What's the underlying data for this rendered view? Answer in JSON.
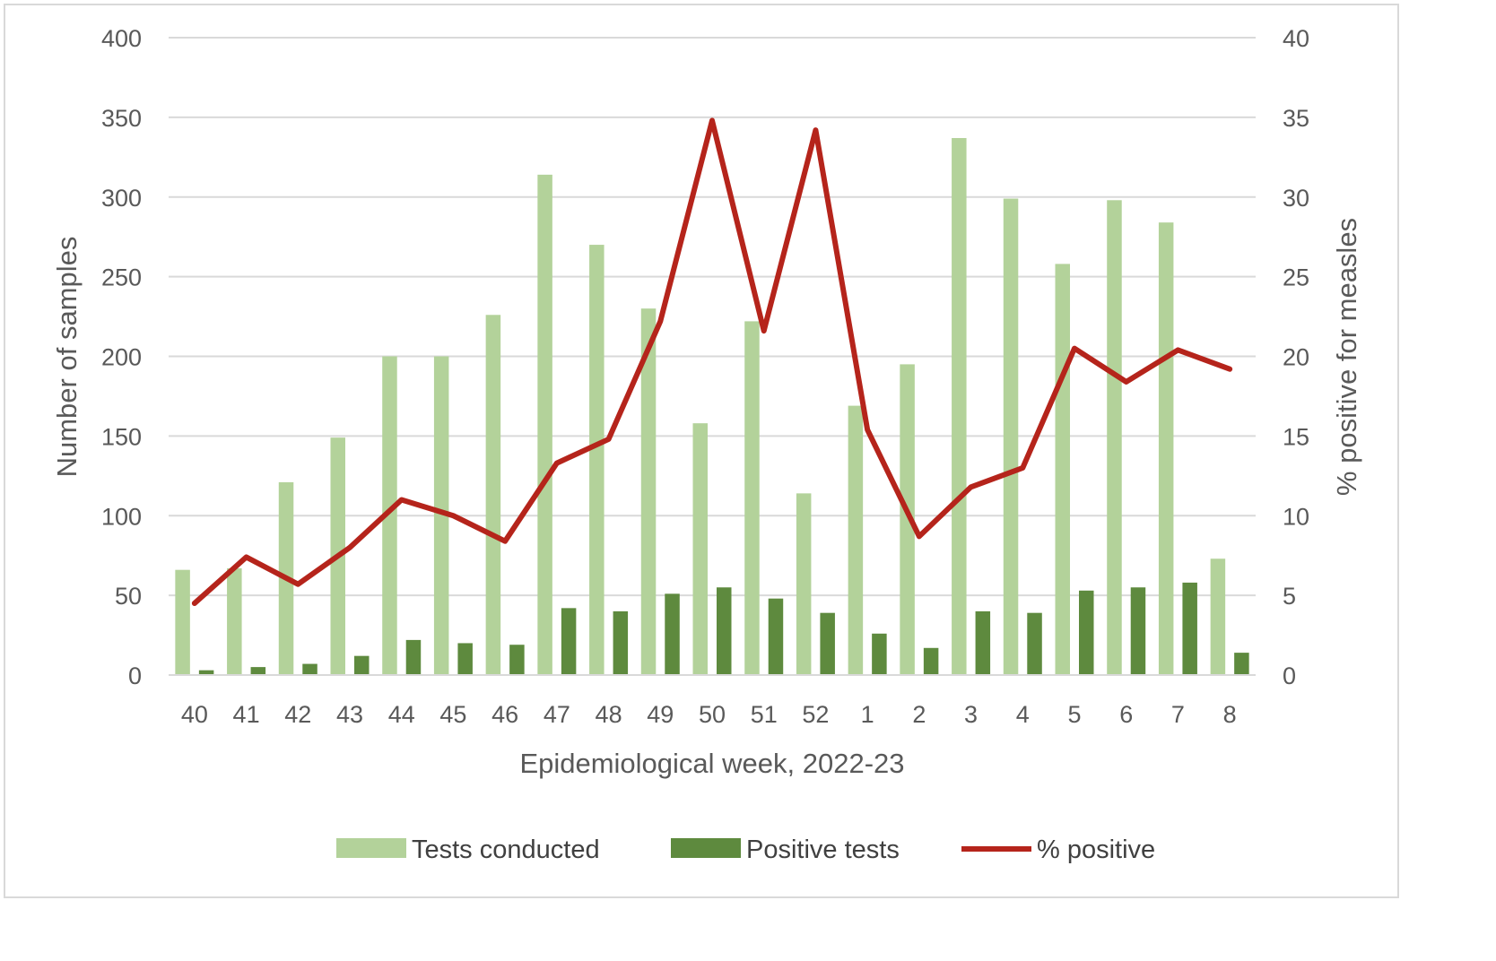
{
  "chart_data": {
    "type": "bar",
    "title": "",
    "xlabel": "Epidemiological week, 2022-23",
    "ylabel": "Number of samples",
    "y2label": "% positive for measles",
    "categories": [
      "40",
      "41",
      "42",
      "43",
      "44",
      "45",
      "46",
      "47",
      "48",
      "49",
      "50",
      "51",
      "52",
      "1",
      "2",
      "3",
      "4",
      "5",
      "6",
      "7",
      "8"
    ],
    "ylim": [
      0,
      400
    ],
    "y2lim": [
      0,
      40
    ],
    "yticks": [
      "0",
      "50",
      "100",
      "150",
      "200",
      "250",
      "300",
      "350",
      "400"
    ],
    "y2ticks": [
      "0",
      "5",
      "10",
      "15",
      "20",
      "25",
      "30",
      "35",
      "40"
    ],
    "grid": "horizontal",
    "legend_position": "bottom",
    "series": [
      {
        "name": "Tests conducted",
        "type": "bar",
        "axis": "left",
        "color": "#b3d29a",
        "values": [
          66,
          67,
          121,
          149,
          200,
          200,
          226,
          314,
          270,
          230,
          158,
          222,
          114,
          169,
          195,
          337,
          299,
          258,
          298,
          284,
          73
        ]
      },
      {
        "name": "Positive tests",
        "type": "bar",
        "axis": "left",
        "color": "#5e8a3e",
        "values": [
          3,
          5,
          7,
          12,
          22,
          20,
          19,
          42,
          40,
          51,
          55,
          48,
          39,
          26,
          17,
          40,
          39,
          53,
          55,
          58,
          14
        ]
      },
      {
        "name": "% positive",
        "type": "line",
        "axis": "right",
        "color": "#b5241b",
        "values": [
          4.5,
          7.4,
          5.7,
          8.0,
          11.0,
          10.0,
          8.4,
          13.3,
          14.8,
          22.2,
          34.8,
          21.6,
          34.2,
          15.4,
          8.7,
          11.8,
          13.0,
          20.5,
          18.4,
          20.4,
          19.2
        ]
      }
    ]
  }
}
